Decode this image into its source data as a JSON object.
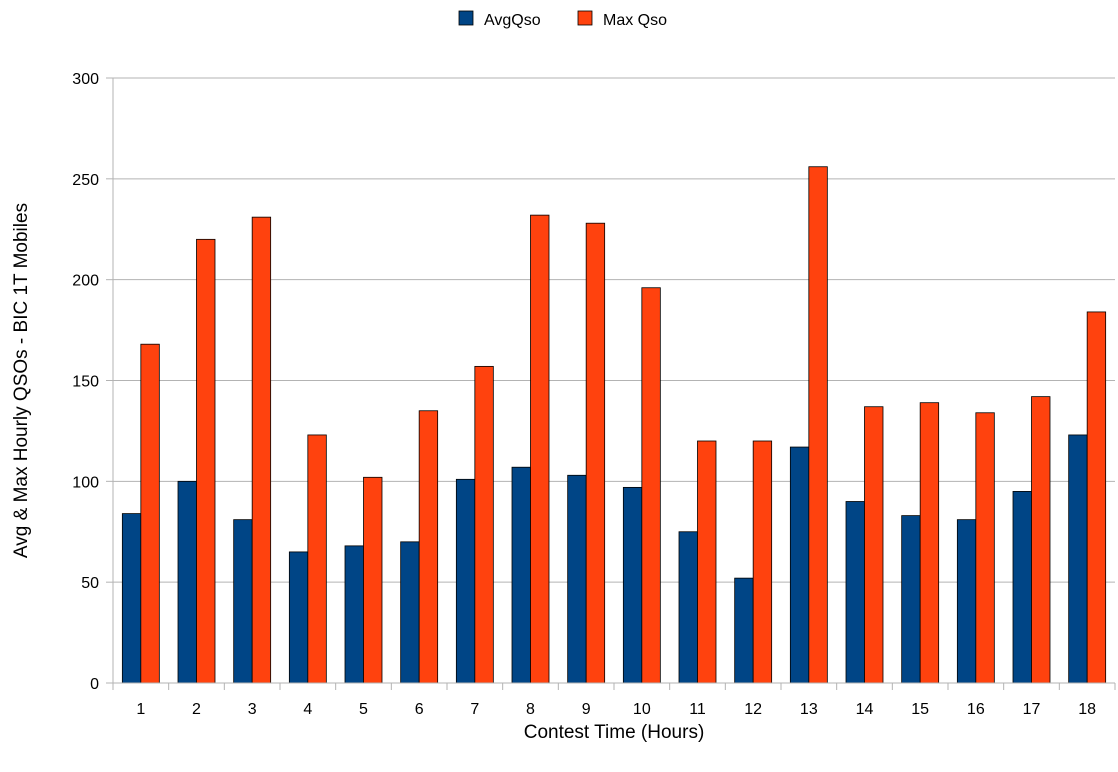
{
  "chart_data": {
    "type": "bar",
    "title": "",
    "xlabel": "Contest Time (Hours)",
    "ylabel": "Avg & Max Hourly QSOs - BIC 1T Mobiles",
    "categories": [
      "1",
      "2",
      "3",
      "4",
      "5",
      "6",
      "7",
      "8",
      "9",
      "10",
      "11",
      "12",
      "13",
      "14",
      "15",
      "16",
      "17",
      "18"
    ],
    "series": [
      {
        "name": "AvgQso",
        "color": "#004586",
        "values": [
          84,
          100,
          81,
          65,
          68,
          70,
          101,
          107,
          103,
          97,
          75,
          52,
          117,
          90,
          83,
          81,
          95,
          123
        ]
      },
      {
        "name": "Max Qso",
        "color": "#ff420e",
        "values": [
          168,
          220,
          231,
          123,
          102,
          135,
          157,
          232,
          228,
          196,
          120,
          120,
          256,
          137,
          139,
          134,
          142,
          184
        ]
      }
    ],
    "ylim": [
      0,
      300
    ],
    "yticks": [
      0,
      50,
      100,
      150,
      200,
      250,
      300
    ],
    "grid": "horizontal",
    "legend": "top-center"
  }
}
